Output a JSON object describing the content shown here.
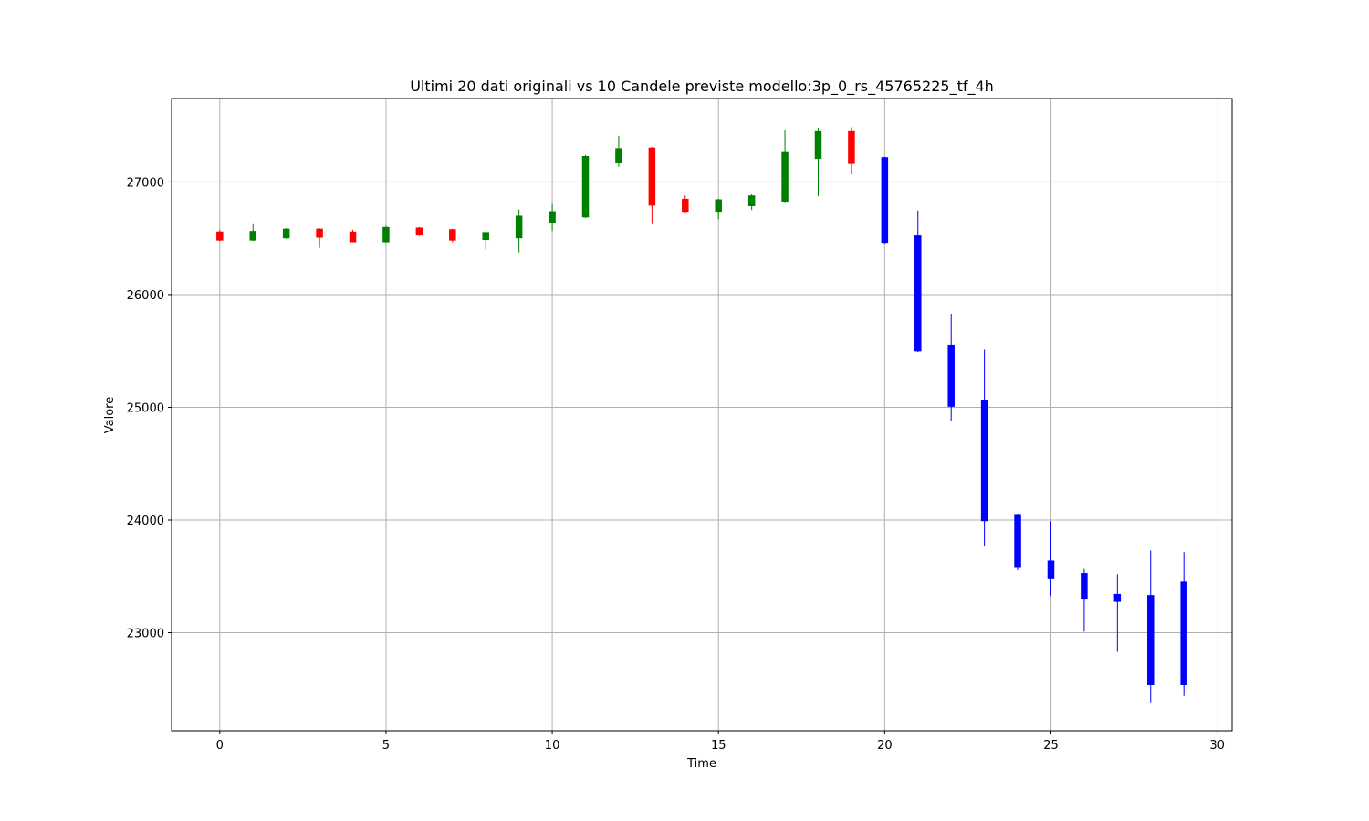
{
  "chart_data": {
    "type": "candlestick",
    "title": "Ultimi 20 dati originali vs 10 Candele previste modello:3p_0_rs_45765225_tf_4h",
    "xlabel": "Time",
    "ylabel": "Valore",
    "xlim": [
      -1.45,
      30.45
    ],
    "ylim": [
      22130,
      27740
    ],
    "x_ticks": [
      0,
      5,
      10,
      15,
      20,
      25,
      30
    ],
    "y_ticks": [
      23000,
      24000,
      25000,
      26000,
      27000
    ],
    "grid": true,
    "colors": {
      "up": "#008000",
      "down": "#ff0000",
      "forecast": "#0000ff"
    },
    "series": [
      {
        "kind": "original",
        "candles": [
          {
            "x": 0,
            "open": 26560,
            "high": 26575,
            "low": 26475,
            "close": 26480
          },
          {
            "x": 1,
            "open": 26480,
            "high": 26625,
            "low": 26475,
            "close": 26565
          },
          {
            "x": 2,
            "open": 26500,
            "high": 26590,
            "low": 26495,
            "close": 26585
          },
          {
            "x": 3,
            "open": 26585,
            "high": 26590,
            "low": 26415,
            "close": 26505
          },
          {
            "x": 4,
            "open": 26560,
            "high": 26575,
            "low": 26465,
            "close": 26465
          },
          {
            "x": 5,
            "open": 26465,
            "high": 26610,
            "low": 26460,
            "close": 26600
          },
          {
            "x": 6,
            "open": 26595,
            "high": 26600,
            "low": 26520,
            "close": 26525
          },
          {
            "x": 7,
            "open": 26580,
            "high": 26585,
            "low": 26465,
            "close": 26480
          },
          {
            "x": 8,
            "open": 26485,
            "high": 26560,
            "low": 26400,
            "close": 26555
          },
          {
            "x": 9,
            "open": 26500,
            "high": 26755,
            "low": 26375,
            "close": 26700
          },
          {
            "x": 10,
            "open": 26635,
            "high": 26805,
            "low": 26565,
            "close": 26740
          },
          {
            "x": 11,
            "open": 26685,
            "high": 27240,
            "low": 26680,
            "close": 27230
          },
          {
            "x": 12,
            "open": 27165,
            "high": 27410,
            "low": 27135,
            "close": 27300
          },
          {
            "x": 13,
            "open": 27305,
            "high": 27310,
            "low": 26625,
            "close": 26790
          },
          {
            "x": 14,
            "open": 26850,
            "high": 26880,
            "low": 26725,
            "close": 26735
          },
          {
            "x": 15,
            "open": 26735,
            "high": 26850,
            "low": 26670,
            "close": 26845
          },
          {
            "x": 16,
            "open": 26785,
            "high": 26890,
            "low": 26750,
            "close": 26880
          },
          {
            "x": 17,
            "open": 26825,
            "high": 27465,
            "low": 26820,
            "close": 27265
          },
          {
            "x": 18,
            "open": 27205,
            "high": 27480,
            "low": 26875,
            "close": 27450
          },
          {
            "x": 19,
            "open": 27450,
            "high": 27485,
            "low": 27065,
            "close": 27160
          }
        ]
      },
      {
        "kind": "forecast",
        "candles": [
          {
            "x": 20,
            "open": 27220,
            "high": 27225,
            "low": 26450,
            "close": 26460
          },
          {
            "x": 21,
            "open": 26525,
            "high": 26745,
            "low": 25490,
            "close": 25495
          },
          {
            "x": 22,
            "open": 25555,
            "high": 25830,
            "low": 24875,
            "close": 25005
          },
          {
            "x": 23,
            "open": 25065,
            "high": 25510,
            "low": 23770,
            "close": 23990
          },
          {
            "x": 24,
            "open": 24045,
            "high": 24050,
            "low": 23555,
            "close": 23575
          },
          {
            "x": 25,
            "open": 23640,
            "high": 23990,
            "low": 23330,
            "close": 23475
          },
          {
            "x": 26,
            "open": 23530,
            "high": 23565,
            "low": 23010,
            "close": 23295
          },
          {
            "x": 27,
            "open": 23345,
            "high": 23520,
            "low": 22830,
            "close": 23275
          },
          {
            "x": 28,
            "open": 23335,
            "high": 23730,
            "low": 22375,
            "close": 22535
          },
          {
            "x": 29,
            "open": 23455,
            "high": 23715,
            "low": 22440,
            "close": 22535
          }
        ]
      }
    ]
  }
}
